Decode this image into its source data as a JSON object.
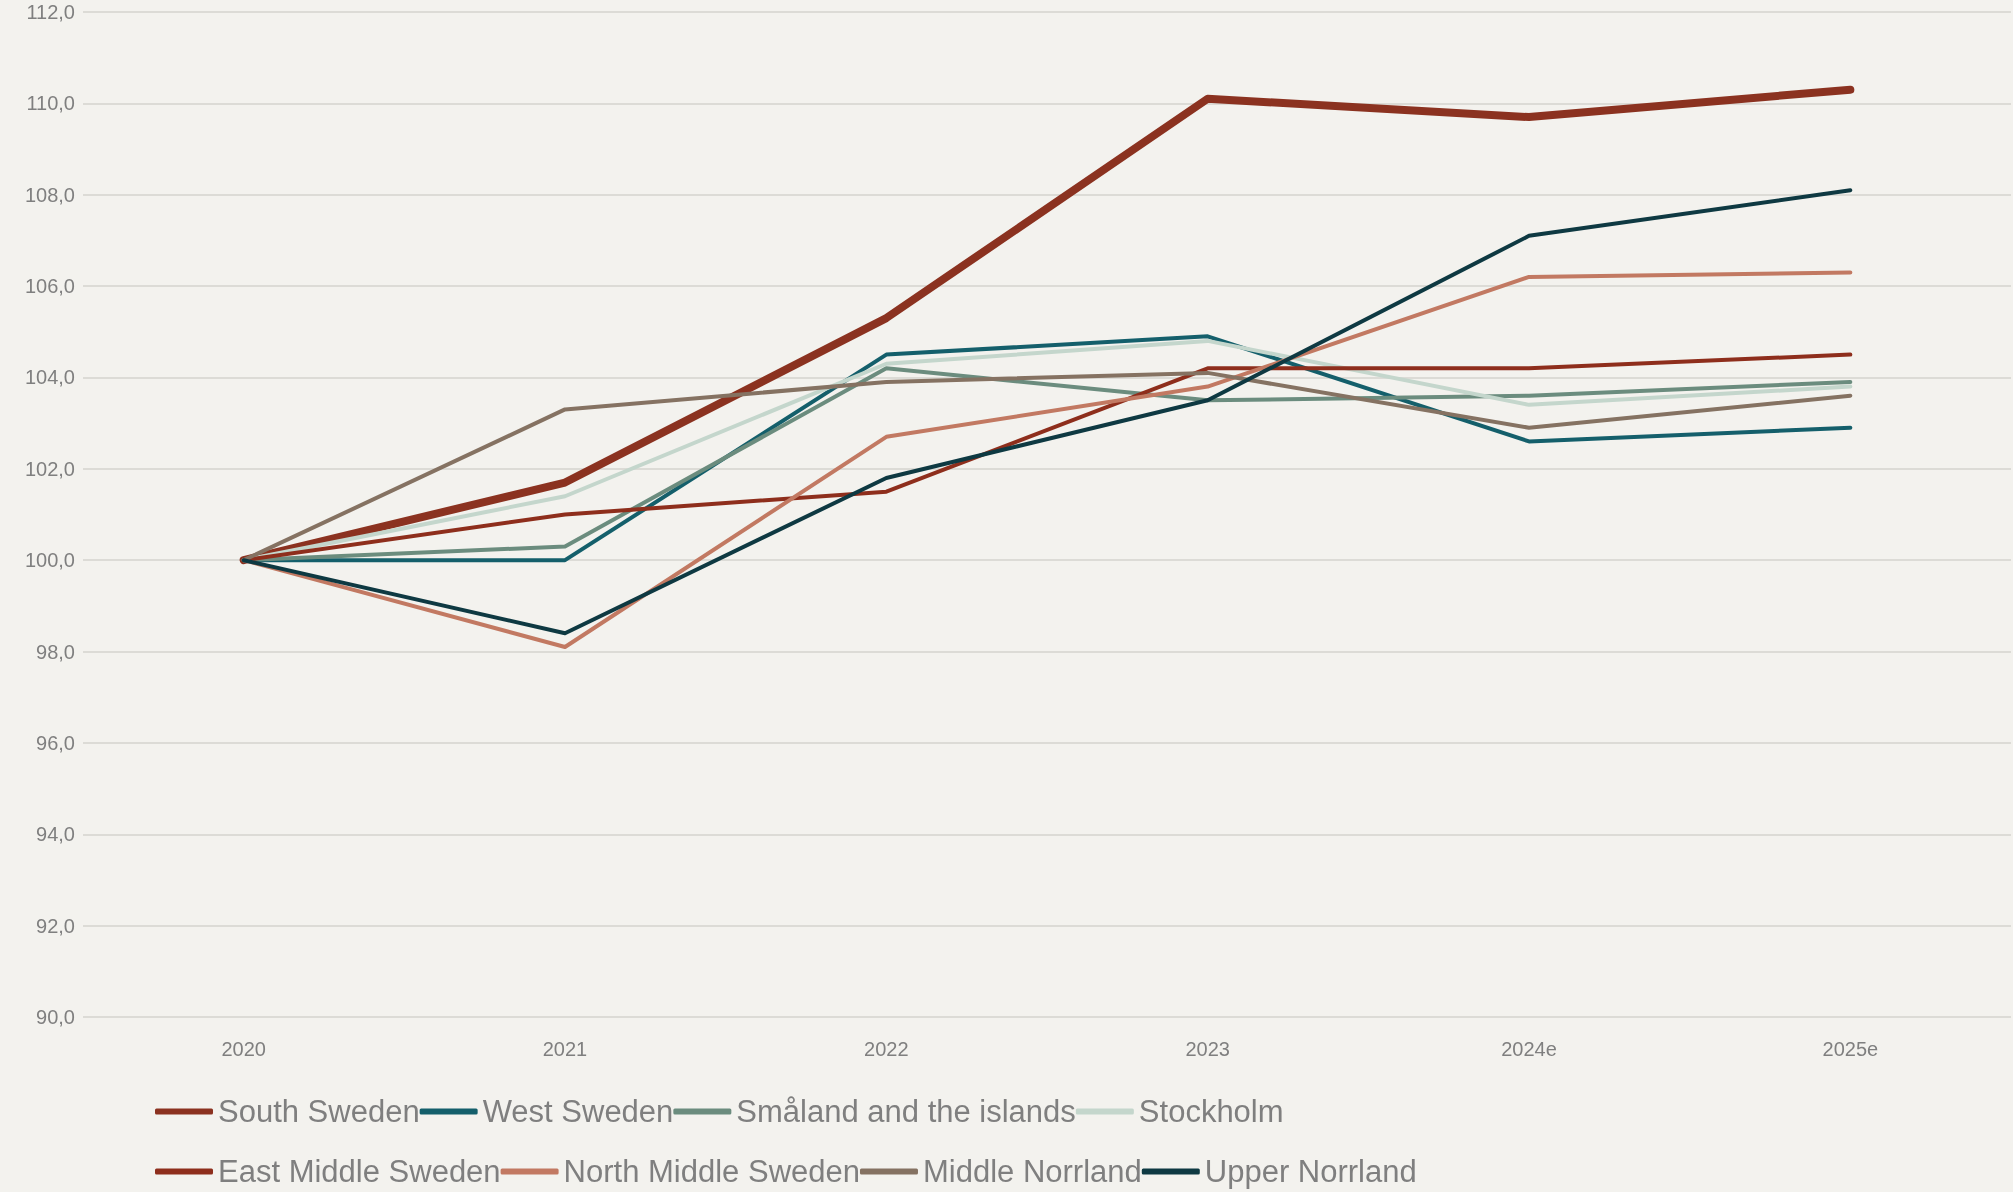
{
  "chart_data": {
    "type": "line",
    "categories": [
      "2020",
      "2021",
      "2022",
      "2023",
      "2024e",
      "2025e"
    ],
    "series": [
      {
        "name": "South Sweden",
        "color": "#8b3220",
        "values": [
          100.0,
          101.7,
          105.3,
          110.1,
          109.7,
          110.3
        ]
      },
      {
        "name": "West Sweden",
        "color": "#145f6b",
        "values": [
          100.0,
          100.0,
          104.5,
          104.9,
          102.6,
          102.9
        ]
      },
      {
        "name": "Småland and the islands",
        "color": "#6b8c7e",
        "values": [
          100.0,
          100.3,
          104.2,
          103.5,
          103.6,
          103.9
        ]
      },
      {
        "name": "Stockholm",
        "color": "#c4d6cc",
        "values": [
          100.0,
          101.4,
          104.3,
          104.8,
          103.4,
          103.8
        ]
      },
      {
        "name": "East Middle Sweden",
        "color": "#8e2e1c",
        "values": [
          100.0,
          101.0,
          101.5,
          104.2,
          104.2,
          104.5
        ]
      },
      {
        "name": "North Middle Sweden",
        "color": "#c27962",
        "values": [
          100.0,
          98.1,
          102.7,
          103.8,
          106.2,
          106.3
        ]
      },
      {
        "name": "Middle Norrland",
        "color": "#857262",
        "values": [
          100.0,
          103.3,
          103.9,
          104.1,
          102.9,
          103.6
        ]
      },
      {
        "name": "Upper Norrland",
        "color": "#0e3942",
        "values": [
          100.0,
          98.4,
          101.8,
          103.5,
          107.1,
          108.1
        ]
      }
    ],
    "ylim": [
      90,
      112
    ],
    "yticks": [
      {
        "value": 90,
        "label": "90,0"
      },
      {
        "value": 92,
        "label": "92,0"
      },
      {
        "value": 94,
        "label": "94,0"
      },
      {
        "value": 96,
        "label": "96,0"
      },
      {
        "value": 98,
        "label": "98,0"
      },
      {
        "value": 100,
        "label": "100,0"
      },
      {
        "value": 102,
        "label": "102,0"
      },
      {
        "value": 104,
        "label": "104,0"
      },
      {
        "value": 106,
        "label": "106,0"
      },
      {
        "value": 108,
        "label": "108,0"
      },
      {
        "value": 110,
        "label": "110,0"
      },
      {
        "value": 112,
        "label": "112,0"
      }
    ],
    "grid": "y",
    "legend": "bottom",
    "marker": "none",
    "line_style": "solid"
  }
}
